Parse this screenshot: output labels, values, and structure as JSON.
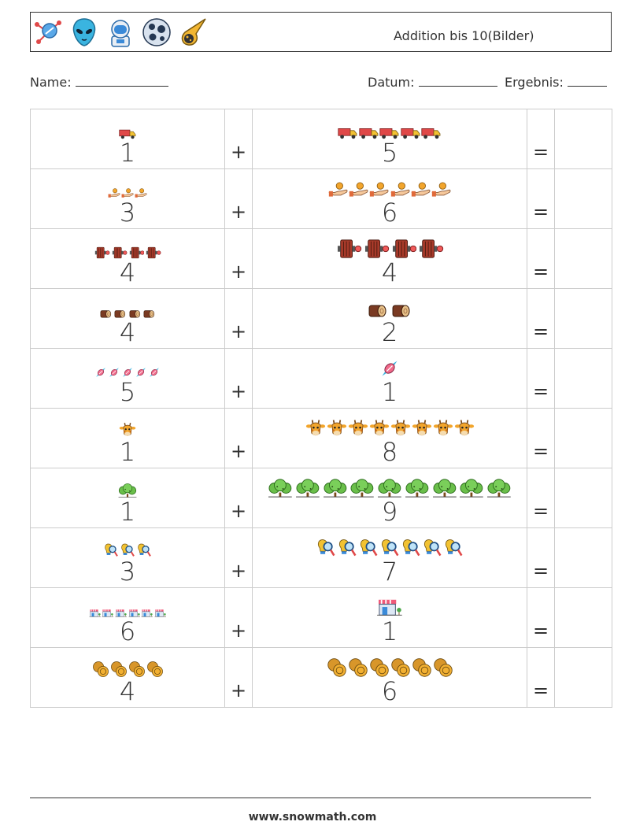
{
  "header": {
    "title": "Addition bis 10(Bilder)",
    "icons": [
      "molecule-icon",
      "alien-icon",
      "astronaut-icon",
      "planet-icon",
      "comet-icon"
    ]
  },
  "fields": {
    "name_label": "Name:",
    "date_label": "Datum:",
    "result_label": "Ergebnis:"
  },
  "symbols": {
    "plus": "+",
    "equals": "="
  },
  "rows": [
    {
      "a": 1,
      "b": 5,
      "icon": "truck-icon"
    },
    {
      "a": 3,
      "b": 6,
      "icon": "hand-coin-icon"
    },
    {
      "a": 4,
      "b": 4,
      "icon": "film-reel-icon"
    },
    {
      "a": 4,
      "b": 2,
      "icon": "log-icon"
    },
    {
      "a": 5,
      "b": 1,
      "icon": "candy-icon"
    },
    {
      "a": 1,
      "b": 8,
      "icon": "giraffe-icon"
    },
    {
      "a": 1,
      "b": 9,
      "icon": "bush-icon"
    },
    {
      "a": 3,
      "b": 7,
      "icon": "lightbulb-search-icon"
    },
    {
      "a": 6,
      "b": 1,
      "icon": "shop-icon"
    },
    {
      "a": 4,
      "b": 6,
      "icon": "coin-icon"
    }
  ],
  "footer": {
    "url": "www.snowmath.com"
  }
}
